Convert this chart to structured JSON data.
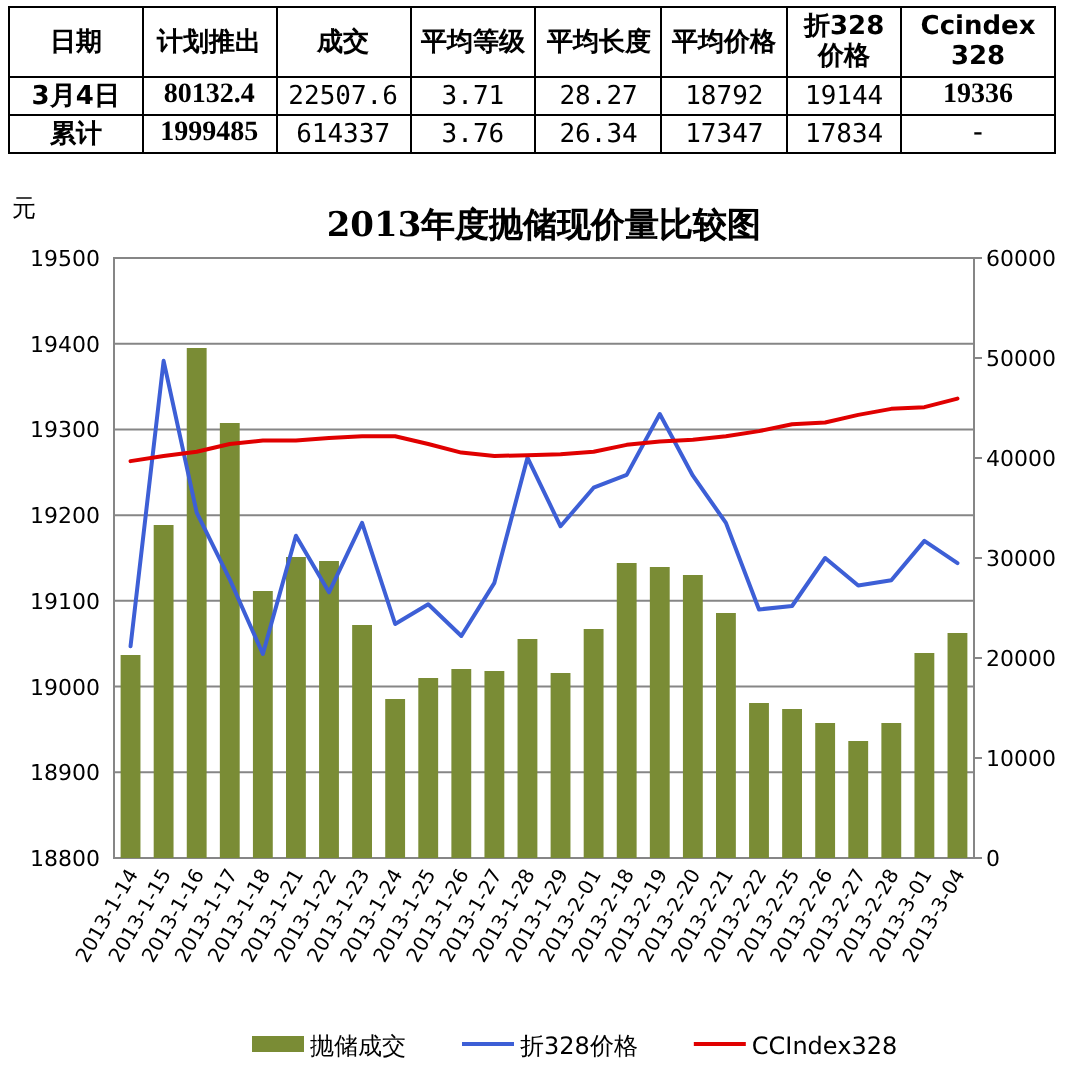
{
  "chart_data": [
    {
      "type": "other",
      "title": "日期",
      "categories": [
        "计划推出",
        "成交",
        "平均等级",
        "平均长度",
        "平均价格",
        "折328价格",
        "Ccindex 328"
      ],
      "y_categories": [
        "3月4日",
        "累计"
      ],
      "cell_labels": [
        [
          "80132.4",
          "22507.6",
          "3.71",
          "28.27",
          "18792",
          "19144",
          "19336"
        ],
        [
          "1999485",
          "614337",
          "3.76",
          "26.34",
          "17347",
          "17834",
          "-"
        ]
      ]
    },
    {
      "type": "bar",
      "title": "2013年度抛储现价量比较图",
      "ylabel": "元",
      "categories": [
        "2013-1-14",
        "2013-1-15",
        "2013-1-16",
        "2013-1-17",
        "2013-1-18",
        "2013-1-21",
        "2013-1-22",
        "2013-1-23",
        "2013-1-24",
        "2013-1-25",
        "2013-1-26",
        "2013-1-27",
        "2013-1-28",
        "2013-1-29",
        "2013-2-01",
        "2013-2-18",
        "2013-2-19",
        "2013-2-20",
        "2013-2-21",
        "2013-2-22",
        "2013-2-25",
        "2013-2-26",
        "2013-2-27",
        "2013-2-28",
        "2013-3-01",
        "2013-3-04"
      ],
      "series": [
        {
          "name": "抛储成交",
          "type": "bar",
          "axis": "y2",
          "color": "#7a8c35",
          "values": [
            20300,
            33300,
            51000,
            43500,
            26700,
            30100,
            29700,
            23300,
            15900,
            18000,
            18900,
            18700,
            21900,
            18500,
            22900,
            29500,
            29100,
            28300,
            24500,
            15500,
            14900,
            13500,
            11700,
            13500,
            20500,
            22500
          ]
        },
        {
          "name": "折328价格",
          "type": "line",
          "color": "#3d5fd6",
          "values": [
            19047,
            19380,
            19203,
            19125,
            19038,
            19176,
            19110,
            19191,
            19073,
            19096,
            19059,
            19121,
            19267,
            19187,
            19232,
            19247,
            19318,
            19246,
            19191,
            19090,
            19094,
            19150,
            19118,
            19124,
            19170,
            19144
          ]
        },
        {
          "name": "CCIndex328",
          "type": "line",
          "color": "#e00000",
          "values": [
            19263,
            19269,
            19274,
            19283,
            19287,
            19287,
            19290,
            19292,
            19292,
            19283,
            19273,
            19269,
            19270,
            19271,
            19274,
            19282,
            19286,
            19288,
            19292,
            19298,
            19306,
            19308,
            19317,
            19324,
            19326,
            19336
          ]
        }
      ],
      "ylim": [
        18800,
        19500
      ],
      "yticks": [
        18800,
        18900,
        19000,
        19100,
        19200,
        19300,
        19400,
        19500
      ],
      "y2lim": [
        0,
        60000
      ],
      "y2ticks": [
        0,
        10000,
        20000,
        30000,
        40000,
        50000,
        60000
      ],
      "grid": "y",
      "legend": "bottom"
    }
  ]
}
